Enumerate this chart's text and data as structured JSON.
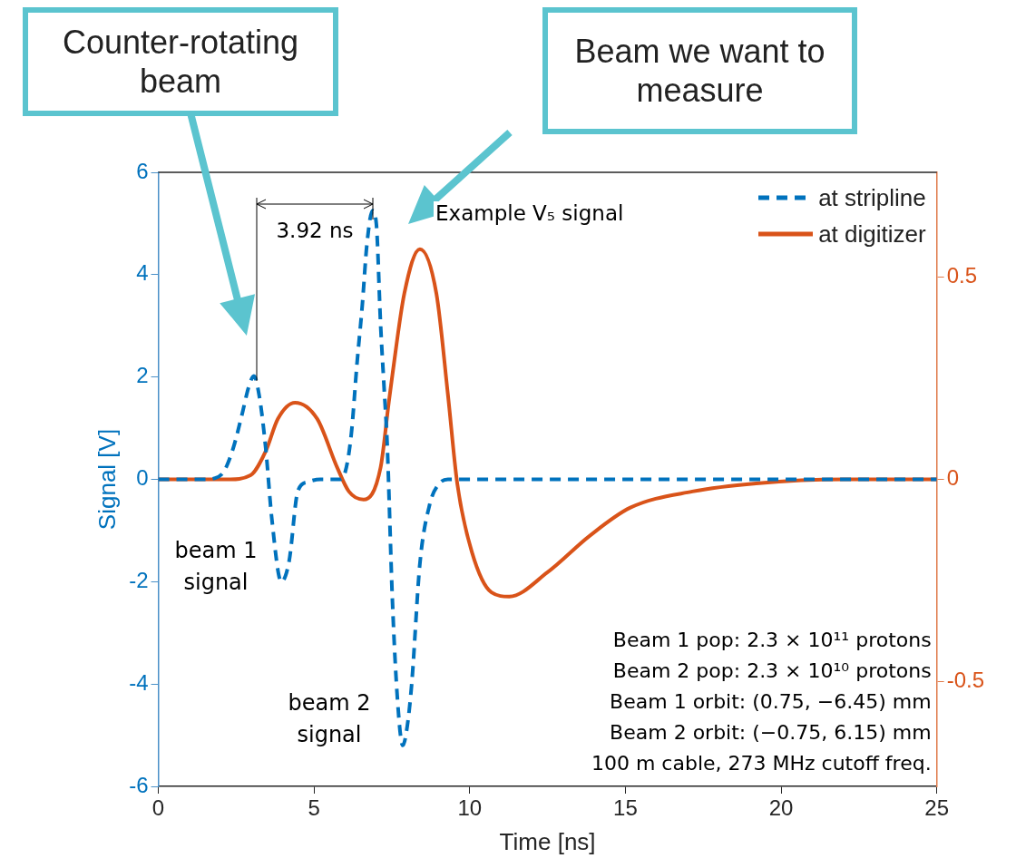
{
  "chart_data": {
    "type": "line",
    "xlabel": "Time [ns]",
    "ylabel": "Signal [V]",
    "xlim": [
      0,
      25
    ],
    "xticks": [
      0,
      5,
      10,
      15,
      20,
      25
    ],
    "ylim": [
      -6,
      6
    ],
    "yticks": [
      -6,
      -4,
      -2,
      0,
      2,
      4,
      6
    ],
    "y2lim": [
      -0.76,
      0.76
    ],
    "y2ticks": [
      -0.5,
      0,
      0.5
    ],
    "grid": false,
    "legend": "top right",
    "marker": "none",
    "series": [
      {
        "name": "at stripline",
        "color": "#0072bd",
        "line_style": "dashed",
        "x": [
          0,
          1.5,
          1.8,
          2.1,
          2.4,
          2.7,
          2.9,
          3.07,
          3.25,
          3.45,
          3.65,
          3.95,
          4.2,
          4.48,
          4.8,
          5.2,
          5.8,
          6.0,
          6.2,
          6.38,
          6.55,
          6.7,
          6.88,
          7.0,
          7.14,
          7.25,
          7.35,
          7.52,
          7.68,
          7.85,
          8.0,
          8.14,
          8.4,
          8.72,
          9.0,
          9.3,
          25
        ],
        "values": [
          0,
          0,
          0.02,
          0.15,
          0.6,
          1.3,
          1.8,
          2.02,
          1.6,
          0.6,
          -0.8,
          -2.0,
          -1.6,
          -0.23,
          -0.05,
          0,
          0,
          0.14,
          0.9,
          2.26,
          3.4,
          4.6,
          5.25,
          5.0,
          3.0,
          1.8,
          0.7,
          -2.4,
          -4.3,
          -5.2,
          -4.8,
          -3.98,
          -1.65,
          -0.48,
          -0.1,
          0,
          0
        ]
      },
      {
        "name": "at digitizer",
        "color": "#d95319",
        "line_style": "solid",
        "axis": "y2",
        "x": [
          0,
          2.25,
          2.96,
          3.45,
          3.84,
          4.39,
          5.1,
          5.74,
          6.12,
          6.59,
          7.14,
          7.4,
          7.52,
          7.9,
          8.4,
          8.93,
          9.3,
          9.6,
          10.07,
          10.7,
          11.27,
          12.5,
          13.85,
          15.16,
          17.15,
          19.2,
          22,
          25
        ],
        "values": [
          0,
          0,
          0.01,
          0.07,
          0.15,
          0.19,
          0.15,
          0.03,
          -0.03,
          -0.05,
          0.03,
          0.19,
          0.26,
          0.46,
          0.57,
          0.46,
          0.21,
          -0.01,
          -0.18,
          -0.28,
          -0.29,
          -0.23,
          -0.14,
          -0.07,
          -0.03,
          -0.01,
          0,
          0
        ]
      }
    ],
    "annotations": [
      "Counter-rotating beam",
      "Beam we want to measure",
      "beam 1 signal",
      "beam 2 signal",
      "3.92 ns",
      "Example V₅ signal",
      "Beam 1 pop: 2.3 × 10¹¹ protons",
      "Beam 2 pop: 2.3 × 10¹⁰ protons",
      "Beam 1 orbit: (0.75, −6.45) mm",
      "Beam 2 orbit: (−0.75, 6.15) mm",
      "100 m cable, 273 MHz cutoff freq."
    ]
  }
}
